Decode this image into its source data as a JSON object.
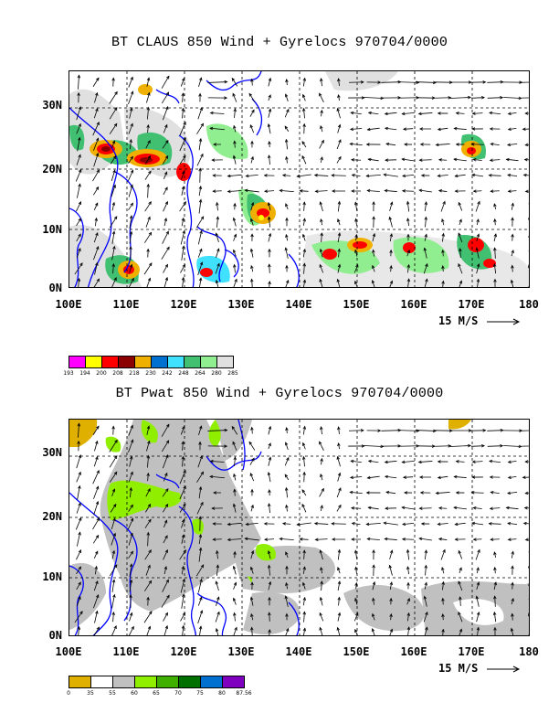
{
  "panel1": {
    "title": "BT CLAUS 850 Wind + Gyrelocs 970704/0000",
    "y_labels": [
      "30N",
      "20N",
      "10N",
      "0N"
    ],
    "x_labels": [
      "100E",
      "110E",
      "120E",
      "130E",
      "140E",
      "150E",
      "160E",
      "170E",
      "180"
    ],
    "vector_scale_label": "15 M/S",
    "colorbar": {
      "labels": [
        "193",
        "194",
        "200",
        "208",
        "218",
        "230",
        "242",
        "248",
        "264",
        "280",
        "285"
      ],
      "colors": [
        "#ff00ff",
        "#ffff00",
        "#ff0000",
        "#8b0000",
        "#f0b000",
        "#0070d0",
        "#40e0ff",
        "#40c070",
        "#90ee90",
        "#e0e0e0"
      ]
    }
  },
  "panel2": {
    "title": "BT Pwat 850 Wind + Gyrelocs 970704/0000",
    "y_labels": [
      "30N",
      "20N",
      "10N",
      "0N"
    ],
    "x_labels": [
      "100E",
      "110E",
      "120E",
      "130E",
      "140E",
      "150E",
      "160E",
      "170E",
      "180"
    ],
    "vector_scale_label": "15 M/S",
    "colorbar": {
      "labels": [
        "0",
        "35",
        "55",
        "60",
        "65",
        "70",
        "75",
        "80",
        "87.56"
      ],
      "colors": [
        "#e0b000",
        "#ffffff",
        "#c0c0c0",
        "#90ee00",
        "#40b000",
        "#007000",
        "#0070d0",
        "#8000c0"
      ]
    }
  }
}
